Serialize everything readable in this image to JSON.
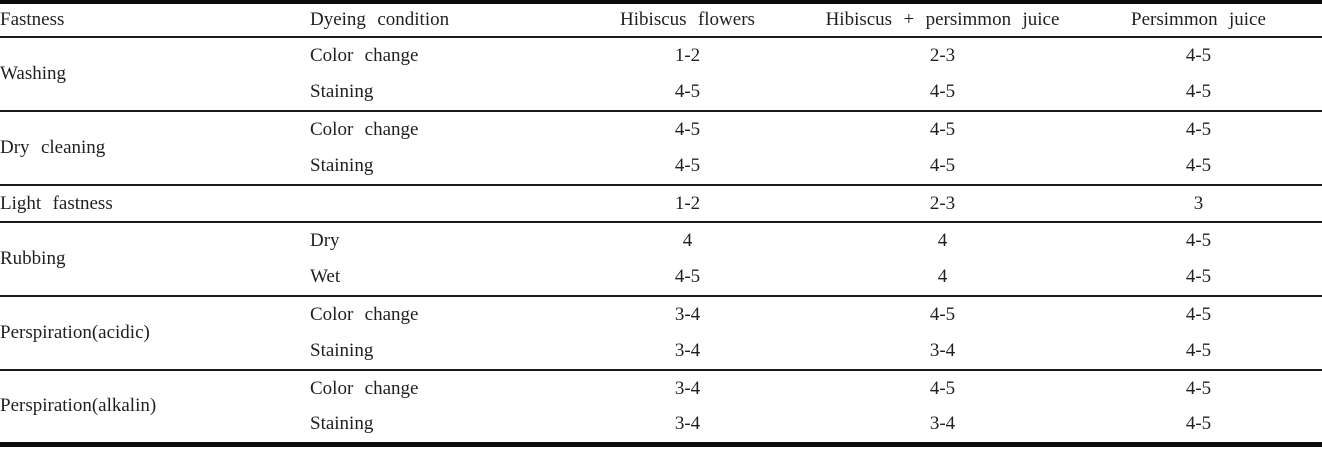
{
  "table": {
    "columns": [
      "Fastness",
      "Dyeing condition",
      "Hibiscus flowers",
      "Hibiscus + persimmon juice",
      "Persimmon juice"
    ],
    "groups": [
      {
        "fastness": "Washing",
        "rows": [
          {
            "condition": "Color change",
            "values": [
              "1-2",
              "2-3",
              "4-5"
            ]
          },
          {
            "condition": "Staining",
            "values": [
              "4-5",
              "4-5",
              "4-5"
            ]
          }
        ]
      },
      {
        "fastness": "Dry cleaning",
        "rows": [
          {
            "condition": "Color change",
            "values": [
              "4-5",
              "4-5",
              "4-5"
            ]
          },
          {
            "condition": "Staining",
            "values": [
              "4-5",
              "4-5",
              "4-5"
            ]
          }
        ]
      },
      {
        "fastness": "Light fastness",
        "rows": [
          {
            "condition": "",
            "values": [
              "1-2",
              "2-3",
              "3"
            ]
          }
        ]
      },
      {
        "fastness": "Rubbing",
        "rows": [
          {
            "condition": "Dry",
            "values": [
              "4",
              "4",
              "4-5"
            ]
          },
          {
            "condition": "Wet",
            "values": [
              "4-5",
              "4",
              "4-5"
            ]
          }
        ]
      },
      {
        "fastness": "Perspiration(acidic)",
        "rows": [
          {
            "condition": "Color change",
            "values": [
              "3-4",
              "4-5",
              "4-5"
            ]
          },
          {
            "condition": "Staining",
            "values": [
              "3-4",
              "3-4",
              "4-5"
            ]
          }
        ]
      },
      {
        "fastness": "Perspiration(alkalin)",
        "rows": [
          {
            "condition": "Color change",
            "values": [
              "3-4",
              "4-5",
              "4-5"
            ]
          },
          {
            "condition": "Staining",
            "values": [
              "3-4",
              "3-4",
              "4-5"
            ]
          }
        ]
      }
    ]
  },
  "chart_data": {
    "type": "table",
    "columns": [
      "Fastness",
      "Dyeing condition",
      "Hibiscus flowers",
      "Hibiscus + persimmon juice",
      "Persimmon juice"
    ],
    "rows": [
      [
        "Washing",
        "Color change",
        "1-2",
        "2-3",
        "4-5"
      ],
      [
        "Washing",
        "Staining",
        "4-5",
        "4-5",
        "4-5"
      ],
      [
        "Dry cleaning",
        "Color change",
        "4-5",
        "4-5",
        "4-5"
      ],
      [
        "Dry cleaning",
        "Staining",
        "4-5",
        "4-5",
        "4-5"
      ],
      [
        "Light fastness",
        "",
        "1-2",
        "2-3",
        "3"
      ],
      [
        "Rubbing",
        "Dry",
        "4",
        "4",
        "4-5"
      ],
      [
        "Rubbing",
        "Wet",
        "4-5",
        "4",
        "4-5"
      ],
      [
        "Perspiration(acidic)",
        "Color change",
        "3-4",
        "4-5",
        "4-5"
      ],
      [
        "Perspiration(acidic)",
        "Staining",
        "3-4",
        "3-4",
        "4-5"
      ],
      [
        "Perspiration(alkalin)",
        "Color change",
        "3-4",
        "4-5",
        "4-5"
      ],
      [
        "Perspiration(alkalin)",
        "Staining",
        "3-4",
        "3-4",
        "4-5"
      ]
    ]
  }
}
